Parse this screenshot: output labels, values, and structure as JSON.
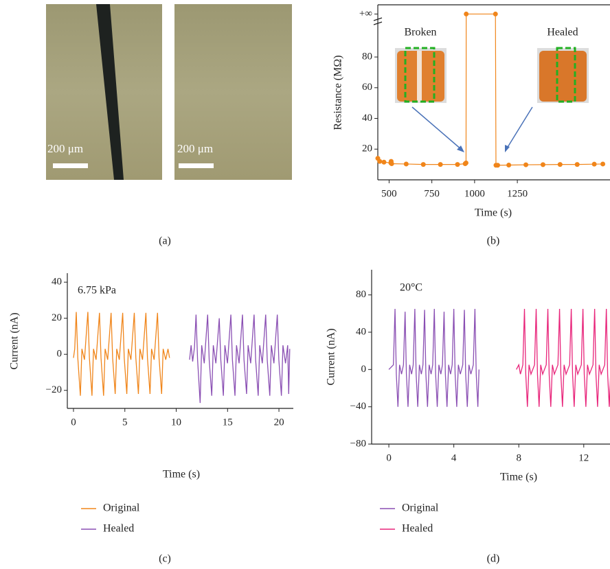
{
  "figure_a": {
    "scale_bar_labels": [
      "200 μm",
      "200 μm"
    ],
    "caption": "(a)"
  },
  "chart_data": [
    {
      "type": "line",
      "caption": "(b)",
      "xlabel": "Time (s)",
      "ylabel": "Resistance (MΩ)",
      "annotations": [
        "Broken",
        "Healed"
      ],
      "xlim": [
        434,
        1800
      ],
      "ylim": [
        0,
        114
      ],
      "xticks": [
        500,
        750,
        1000,
        1250
      ],
      "yticks": [
        20,
        40,
        60,
        80,
        {
          "value": 108,
          "label": "+∞"
        }
      ],
      "x": [
        434,
        445,
        470,
        510,
        512,
        515,
        600,
        700,
        800,
        900,
        945,
        950,
        951,
        1122,
        1125,
        1135,
        1200,
        1300,
        1400,
        1500,
        1600,
        1700,
        1750
      ],
      "series": [
        {
          "color": "#f0851a",
          "marker": true,
          "values": [
            14,
            12,
            11.5,
            11,
            12,
            10.5,
            10.3,
            10,
            10,
            10,
            10.5,
            11,
            108,
            108,
            9.5,
            9.5,
            9.6,
            9.8,
            9.9,
            10,
            10,
            10.2,
            10.3
          ]
        }
      ]
    },
    {
      "type": "line",
      "caption": "(c)",
      "xlabel": "Time (s)",
      "ylabel": "Current (nA)",
      "annotations": [
        "6.75 kPa"
      ],
      "legend": "below",
      "xlim": [
        -0.6,
        21.4
      ],
      "ylim": [
        -30,
        45
      ],
      "xticks": [
        0,
        5,
        10,
        15,
        20
      ],
      "yticks": [
        {
          "value": -20,
          "label": "−20"
        },
        0,
        20,
        40
      ],
      "series": [
        {
          "name": "Original",
          "color": "#f0851a",
          "x": [
            0,
            0.12,
            0.27,
            0.42,
            0.67,
            0.82,
            1.07,
            1.4,
            1.55,
            1.8,
            1.95,
            2.2,
            2.53,
            2.68,
            2.93,
            3.08,
            3.33,
            3.66,
            3.81,
            4.06,
            4.21,
            4.46,
            4.79,
            4.94,
            5.19,
            5.34,
            5.59,
            5.92,
            6.07,
            6.32,
            6.47,
            6.72,
            7.05,
            7.2,
            7.45,
            7.6,
            7.85,
            8.18,
            8.33,
            8.58,
            8.73,
            8.98,
            9.2,
            9.35
          ],
          "values": [
            -2,
            3,
            23.5,
            -2,
            -23,
            3,
            -3,
            23.5,
            -2,
            -23,
            3,
            -3,
            23,
            -2,
            -23,
            3,
            -3,
            23,
            -2,
            -22,
            3,
            -3,
            23,
            -2,
            -22,
            3,
            -3,
            23,
            -2,
            -22,
            3,
            -3,
            23,
            -2,
            -22,
            3,
            -3,
            23,
            -2,
            -22,
            3,
            -3,
            3,
            -2
          ]
        },
        {
          "name": "Healed",
          "color": "#8a4fb3",
          "x": [
            11.3,
            11.45,
            11.6,
            11.78,
            11.93,
            12.08,
            12.33,
            12.48,
            12.73,
            13.06,
            13.21,
            13.46,
            13.61,
            13.86,
            14.19,
            14.34,
            14.59,
            14.74,
            14.99,
            15.32,
            15.47,
            15.72,
            15.87,
            16.12,
            16.45,
            16.6,
            16.85,
            17.0,
            17.25,
            17.58,
            17.73,
            17.98,
            18.13,
            18.38,
            18.71,
            18.86,
            19.11,
            19.26,
            19.51,
            19.84,
            19.99,
            20.24,
            20.39,
            20.64,
            20.85,
            20.95,
            21.05
          ],
          "values": [
            -3,
            5,
            -4,
            4,
            22,
            -3,
            -27,
            5,
            -5,
            22,
            -3,
            -23,
            5,
            -5,
            20,
            -3,
            -23,
            5,
            -5,
            22,
            -3,
            -23,
            5,
            -5,
            22,
            -3,
            -22,
            5,
            -5,
            22,
            -3,
            -23,
            5,
            -5,
            22,
            -3,
            -23,
            5,
            -5,
            22,
            -3,
            -23,
            5,
            -5,
            5,
            -22,
            3
          ]
        }
      ]
    },
    {
      "type": "line",
      "caption": "(d)",
      "xlabel": "Time (s)",
      "ylabel": "Current (nA)",
      "annotations": [
        "20°C"
      ],
      "legend": "below",
      "xlim": [
        -1.06,
        13.7
      ],
      "ylim": [
        -80,
        107
      ],
      "xticks": [
        0,
        4,
        8,
        12
      ],
      "yticks": [
        {
          "value": -80,
          "label": "−80"
        },
        {
          "value": -40,
          "label": "−40"
        },
        0,
        40,
        80
      ],
      "series": [
        {
          "name": "Original",
          "color": "#8a4fb3",
          "x": [
            0,
            0.28,
            0.38,
            0.46,
            0.56,
            0.66,
            0.78,
            0.9,
            1.0,
            1.08,
            1.18,
            1.28,
            1.4,
            1.5,
            1.6,
            1.68,
            1.78,
            1.88,
            2.0,
            2.1,
            2.2,
            2.28,
            2.38,
            2.48,
            2.6,
            2.7,
            2.8,
            2.88,
            2.98,
            3.08,
            3.2,
            3.3,
            3.4,
            3.48,
            3.58,
            3.68,
            3.8,
            3.9,
            4.0,
            4.08,
            4.18,
            4.28,
            4.4,
            4.55,
            4.65,
            4.73,
            4.83,
            4.93,
            5.05,
            5.2,
            5.3,
            5.38,
            5.48,
            5.55
          ],
          "values": [
            0,
            5,
            65,
            -5,
            -40,
            5,
            -5,
            5,
            62,
            -5,
            -40,
            5,
            -5,
            5,
            65,
            -5,
            -40,
            5,
            -5,
            5,
            64,
            -5,
            -40,
            5,
            -5,
            5,
            65,
            -5,
            -40,
            5,
            -5,
            5,
            62,
            -5,
            -40,
            5,
            -5,
            5,
            65,
            -5,
            -40,
            5,
            -5,
            5,
            64,
            -5,
            -40,
            5,
            -5,
            5,
            65,
            -5,
            -40,
            0
          ]
        },
        {
          "name": "Healed",
          "color": "#e8247a",
          "x": [
            7.85,
            8.0,
            8.1,
            8.25,
            8.35,
            8.43,
            8.53,
            8.63,
            8.75,
            8.97,
            9.07,
            9.15,
            9.25,
            9.35,
            9.47,
            9.69,
            9.79,
            9.87,
            9.97,
            10.07,
            10.19,
            10.41,
            10.51,
            10.59,
            10.69,
            10.79,
            10.91,
            11.13,
            11.23,
            11.31,
            11.41,
            11.51,
            11.63,
            11.85,
            11.95,
            12.03,
            12.13,
            12.23,
            12.35,
            12.57,
            12.67,
            12.75,
            12.85,
            12.95,
            13.07,
            13.29,
            13.39,
            13.47,
            13.57,
            13.67
          ],
          "values": [
            0,
            5,
            -5,
            5,
            65,
            -5,
            -40,
            5,
            -5,
            5,
            65,
            -5,
            -40,
            5,
            -5,
            5,
            65,
            -5,
            -40,
            5,
            -5,
            5,
            65,
            -5,
            -40,
            5,
            -5,
            5,
            65,
            -5,
            -40,
            5,
            -5,
            5,
            65,
            -5,
            -40,
            5,
            -5,
            5,
            65,
            -5,
            -40,
            5,
            -5,
            5,
            65,
            -5,
            -40,
            5
          ]
        }
      ]
    }
  ]
}
